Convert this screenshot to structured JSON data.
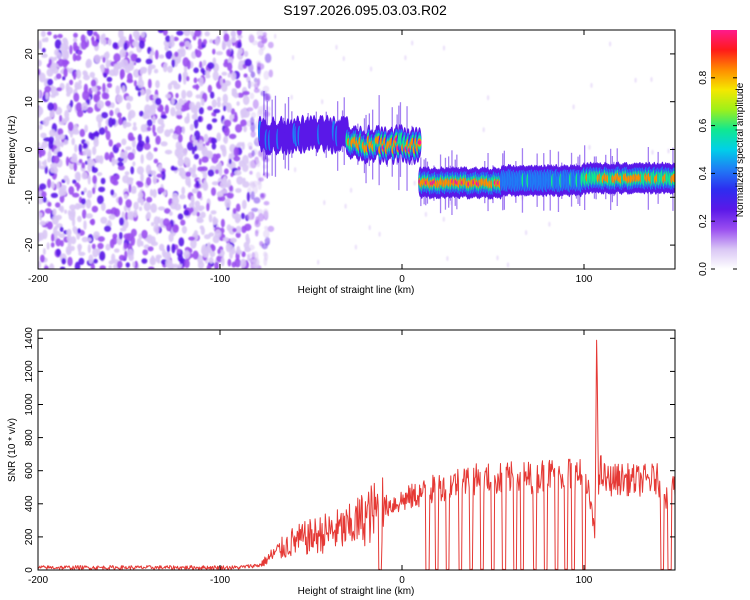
{
  "figure_title": "S197.2026.095.03.03.R02",
  "colors": {
    "snr_line": "#e53935",
    "axis": "#000000",
    "colormap": [
      "#ffffff",
      "#d9c6f5",
      "#9a4ef0",
      "#5a18e8",
      "#2d2df0",
      "#1f7cf5",
      "#00d0e8",
      "#10e890",
      "#9ef01a",
      "#f5e800",
      "#ff8c00",
      "#ff1a1a",
      "#ff1a8c"
    ]
  },
  "chart_data": [
    {
      "type": "heatmap",
      "title": "",
      "xlabel": "Height of straight line (km)",
      "ylabel": "Frequency (Hz)",
      "xlim": [
        -200,
        150
      ],
      "ylim": [
        -25,
        25
      ],
      "x_ticks": [
        -200,
        -100,
        0,
        100
      ],
      "x_tick_labels": [
        "-200",
        "-100",
        "0",
        "100"
      ],
      "y_ticks": [
        -20,
        -10,
        0,
        10,
        20
      ],
      "y_tick_labels": [
        "-20",
        "-10",
        "0",
        "10",
        "20"
      ],
      "colorbar": {
        "label": "Normalized spectral amplitude",
        "range": [
          0,
          1
        ],
        "ticks": [
          0.0,
          0.2,
          0.4,
          0.6,
          0.8
        ],
        "tick_labels": [
          "0.0",
          "0.2",
          "0.4",
          "0.6",
          "0.8"
        ]
      },
      "noise_region_km": [
        -200,
        -78
      ],
      "ridge": {
        "segments": [
          {
            "x_start": -78,
            "x_end": -30,
            "freq_hz": 3,
            "peak_amplitude": 0.4
          },
          {
            "x_start": -30,
            "x_end": 10,
            "freq_hz": 1,
            "peak_amplitude": 0.95
          },
          {
            "x_start": 10,
            "x_end": 55,
            "freq_hz": -7,
            "peak_amplitude": 1.0
          },
          {
            "x_start": 55,
            "x_end": 100,
            "freq_hz": -6.5,
            "peak_amplitude": 0.6
          },
          {
            "x_start": 100,
            "x_end": 108,
            "freq_hz": -6,
            "peak_amplitude": 0.8
          },
          {
            "x_start": 108,
            "x_end": 150,
            "freq_hz": -6,
            "peak_amplitude": 0.9
          }
        ],
        "frequency_jump_km": 10
      }
    },
    {
      "type": "line",
      "title": "",
      "xlabel": "Height of straight line (km)",
      "ylabel": "SNR (10 * v/v)",
      "xlim": [
        -200,
        150
      ],
      "ylim": [
        0,
        1450
      ],
      "x_ticks": [
        -200,
        -100,
        0,
        100
      ],
      "x_tick_labels": [
        "-200",
        "-100",
        "0",
        "100"
      ],
      "y_ticks": [
        0,
        200,
        400,
        600,
        800,
        1000,
        1200,
        1400
      ],
      "y_tick_labels": [
        "0",
        "200",
        "400",
        "600",
        "800",
        "1000",
        "1200",
        "1400"
      ],
      "series": [
        {
          "name": "SNR",
          "x": [
            -200,
            -160,
            -120,
            -90,
            -78,
            -70,
            -60,
            -50,
            -40,
            -30,
            -20,
            -10,
            0,
            10,
            20,
            30,
            40,
            50,
            60,
            70,
            80,
            90,
            98,
            103,
            106,
            107,
            108,
            109,
            112,
            120,
            130,
            140,
            145,
            150
          ],
          "y": [
            15,
            15,
            15,
            15,
            30,
            100,
            170,
            200,
            230,
            250,
            320,
            380,
            420,
            460,
            500,
            530,
            545,
            550,
            555,
            560,
            575,
            585,
            570,
            450,
            200,
            1450,
            450,
            600,
            540,
            550,
            540,
            550,
            450,
            520
          ]
        }
      ],
      "dropouts_km": [
        -12,
        14,
        19,
        25,
        32,
        38,
        44,
        50,
        56,
        62,
        66,
        73,
        79,
        85,
        90,
        94,
        100,
        143,
        147
      ]
    }
  ]
}
